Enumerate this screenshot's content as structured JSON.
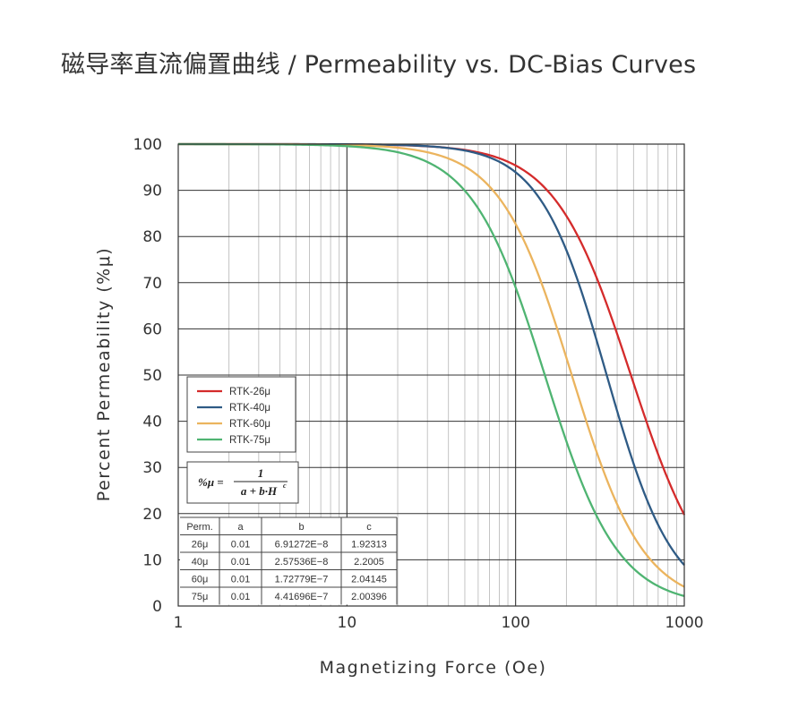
{
  "title": "磁导率直流偏置曲线 / Permeability vs. DC-Bias Curves",
  "chart_data": {
    "type": "line",
    "xscale": "log",
    "xlim": [
      1,
      1000
    ],
    "ylim": [
      0,
      100
    ],
    "grid": true,
    "xlabel": "Magnetizing Force (Oe)",
    "ylabel": "Percent Permeability (%μ)",
    "x_ticks": [
      "1",
      "10",
      "100",
      "1000"
    ],
    "y_ticks": [
      "0",
      "10",
      "20",
      "30",
      "40",
      "50",
      "60",
      "70",
      "80",
      "90",
      "100"
    ],
    "legend_position": "center-left",
    "series": [
      {
        "name": "RTK-26μ",
        "color": "#d42b2b",
        "a": 0.01,
        "b": 6.91272e-08,
        "c": 1.92313
      },
      {
        "name": "RTK-40μ",
        "color": "#2f5b85",
        "a": 0.01,
        "b": 2.57536e-08,
        "c": 2.2005
      },
      {
        "name": "RTK-60μ",
        "color": "#ebb45e",
        "a": 0.01,
        "b": 1.72779e-07,
        "c": 2.04145
      },
      {
        "name": "RTK-75μ",
        "color": "#4fb472",
        "a": 0.01,
        "b": 4.41696e-07,
        "c": 2.00396
      }
    ],
    "formula": {
      "lhs": "%μ =",
      "numerator": "1",
      "denominator": "a + b·H",
      "exponent": "c"
    },
    "table": {
      "headers": [
        "Perm.",
        "a",
        "b",
        "c"
      ],
      "rows": [
        [
          "26μ",
          "0.01",
          "6.91272E−8",
          "1.92313"
        ],
        [
          "40μ",
          "0.01",
          "2.57536E−8",
          "2.2005"
        ],
        [
          "60μ",
          "0.01",
          "1.72779E−7",
          "2.04145"
        ],
        [
          "75μ",
          "0.01",
          "4.41696E−7",
          "2.00396"
        ]
      ]
    }
  }
}
